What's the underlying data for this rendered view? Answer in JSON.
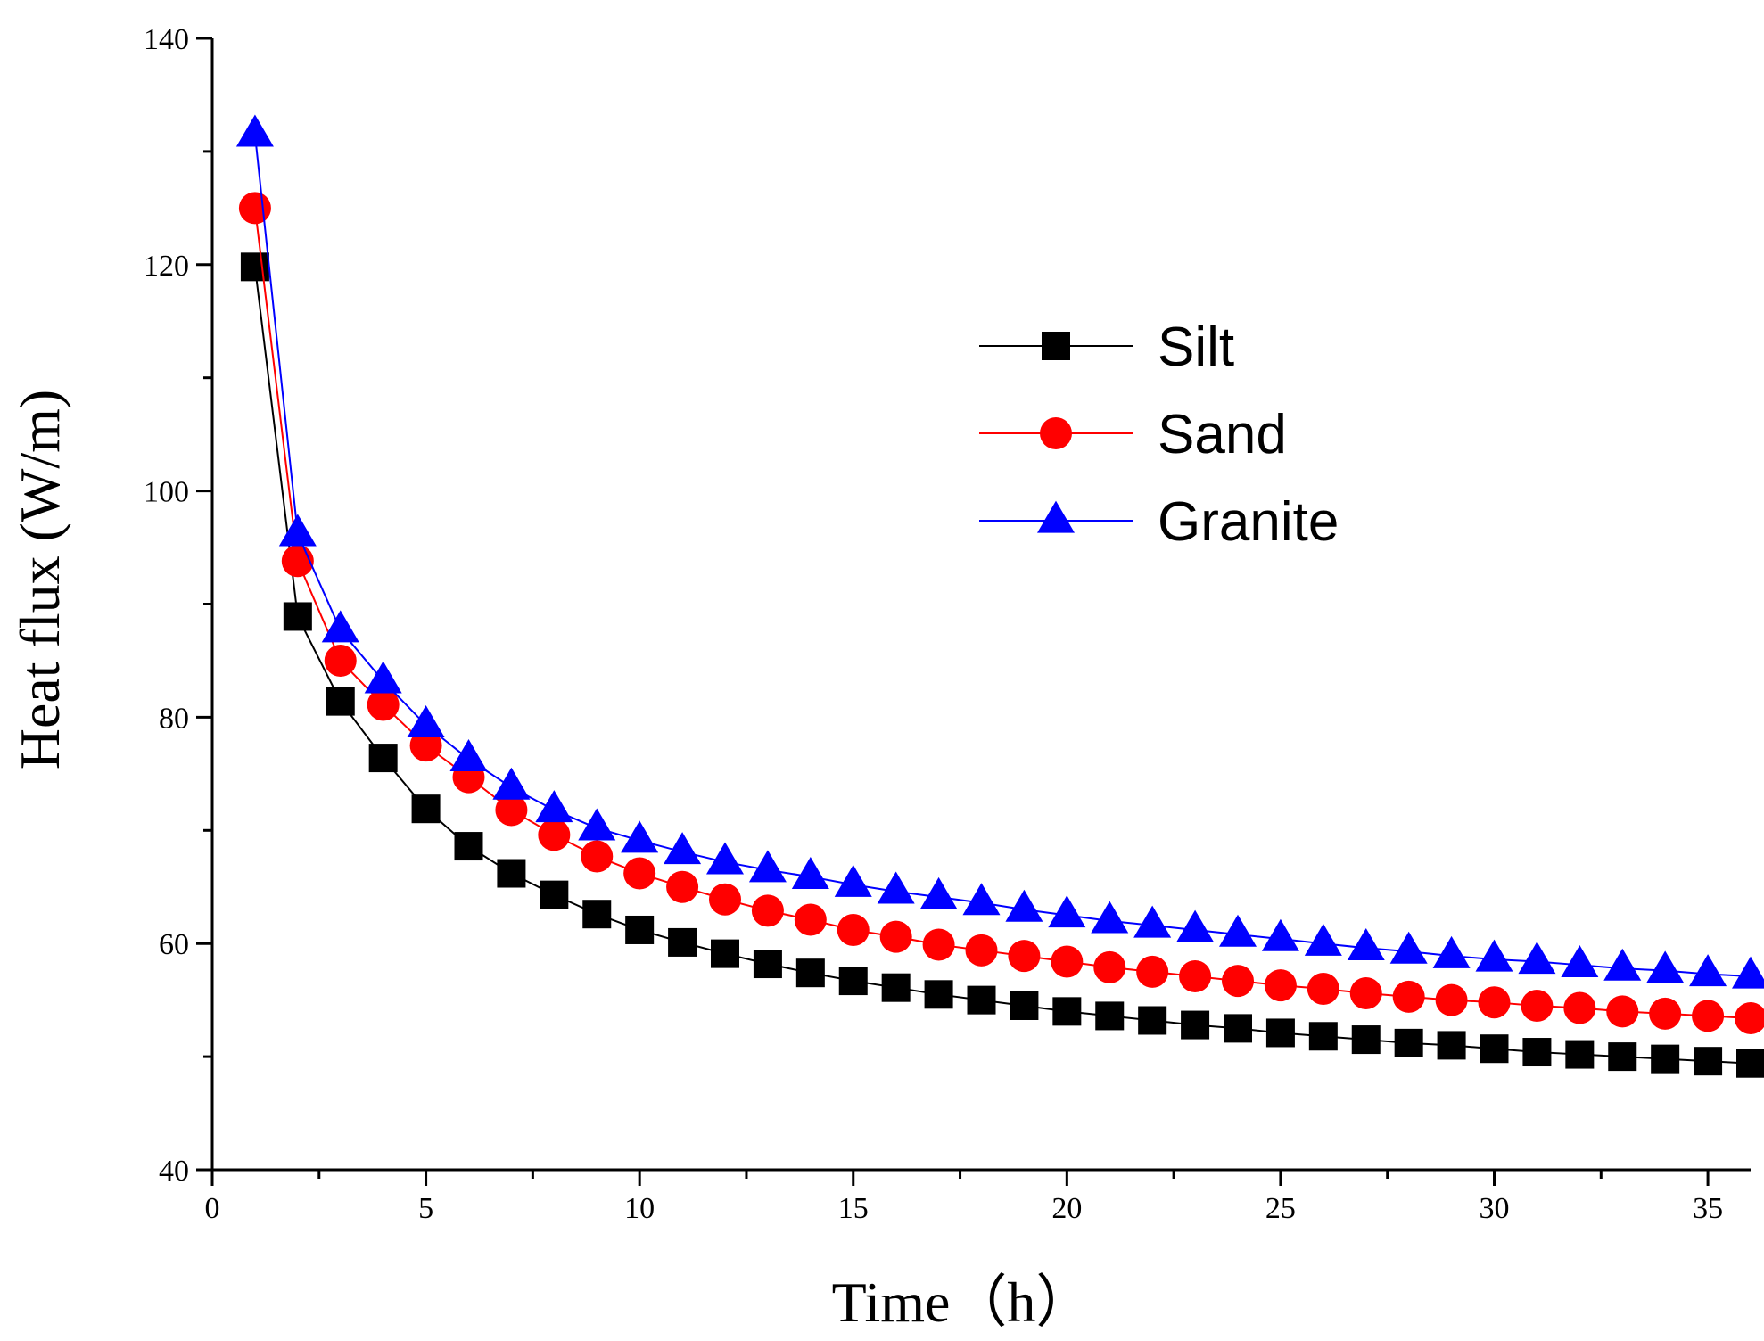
{
  "chart_data": {
    "type": "line",
    "title": "",
    "xlabel": "Time（h）",
    "ylabel": "Heat flux (W/m)",
    "xlim": [
      0,
      36
    ],
    "ylim": [
      40,
      140
    ],
    "x_major_ticks": [
      0,
      5,
      10,
      15,
      20,
      25,
      30,
      35
    ],
    "x_tick_labels": [
      "0",
      "5",
      "10",
      "15",
      "20",
      "25",
      "30",
      "35"
    ],
    "x_minor_step": 2.5,
    "y_major_ticks": [
      40,
      60,
      80,
      100,
      120,
      140
    ],
    "y_tick_labels": [
      "40",
      "60",
      "80",
      "100",
      "120",
      "140"
    ],
    "y_minor_step": 10,
    "grid": false,
    "legend_position": "upper-right",
    "x": [
      1,
      2,
      3,
      4,
      5,
      6,
      7,
      8,
      9,
      10,
      11,
      12,
      13,
      14,
      15,
      16,
      17,
      18,
      19,
      20,
      21,
      22,
      23,
      24,
      25,
      26,
      27,
      28,
      29,
      30,
      31,
      32,
      33,
      34,
      35,
      36
    ],
    "series": [
      {
        "name": "Silt",
        "color": "#000000",
        "marker": "square",
        "values": [
          119.8,
          88.9,
          81.4,
          76.4,
          71.9,
          68.6,
          66.2,
          64.3,
          62.6,
          61.2,
          60.1,
          59.1,
          58.2,
          57.4,
          56.7,
          56.1,
          55.5,
          55.0,
          54.5,
          54.0,
          53.6,
          53.2,
          52.8,
          52.5,
          52.1,
          51.8,
          51.5,
          51.2,
          51.0,
          50.7,
          50.4,
          50.2,
          50.0,
          49.8,
          49.6,
          49.4
        ]
      },
      {
        "name": "Sand",
        "color": "#ff0000",
        "marker": "circle",
        "values": [
          125.0,
          93.8,
          85.0,
          81.1,
          77.5,
          74.7,
          71.8,
          69.6,
          67.7,
          66.2,
          65.0,
          63.9,
          62.9,
          62.1,
          61.2,
          60.6,
          59.9,
          59.4,
          58.9,
          58.4,
          57.9,
          57.5,
          57.1,
          56.7,
          56.3,
          56.0,
          55.6,
          55.3,
          55.0,
          54.8,
          54.5,
          54.3,
          54.0,
          53.8,
          53.6,
          53.4
        ]
      },
      {
        "name": "Granite",
        "color": "#0000ff",
        "marker": "triangle",
        "values": [
          131.5,
          96.2,
          87.7,
          83.2,
          79.3,
          76.3,
          73.8,
          71.8,
          70.2,
          69.1,
          68.1,
          67.2,
          66.5,
          65.9,
          65.2,
          64.6,
          64.1,
          63.6,
          63.0,
          62.5,
          62.0,
          61.6,
          61.2,
          60.8,
          60.4,
          60.0,
          59.6,
          59.3,
          58.9,
          58.6,
          58.4,
          58.1,
          57.8,
          57.6,
          57.3,
          57.1
        ]
      }
    ]
  }
}
